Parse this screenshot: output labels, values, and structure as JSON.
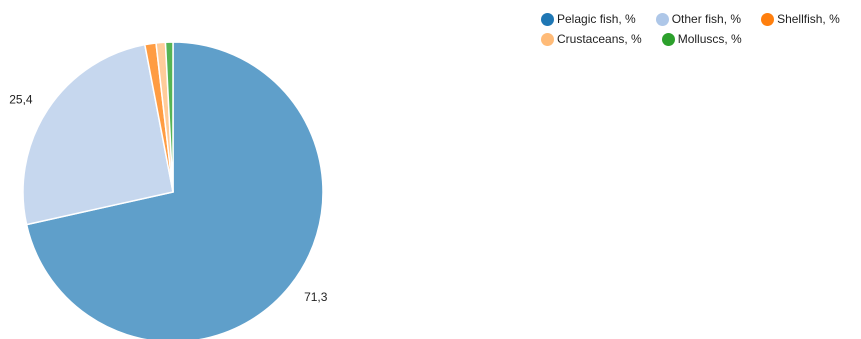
{
  "chart_data": {
    "type": "pie",
    "title": "",
    "series": [
      {
        "name": "Pelagic fish, %",
        "value": 71.3,
        "label": "71,3",
        "color": "#1f77b4",
        "fill": "#5f9fca"
      },
      {
        "name": "Other fish, %",
        "value": 25.4,
        "label": "25,4",
        "color": "#aec7e8",
        "fill": "#c6d7ee"
      },
      {
        "name": "Shellfish, %",
        "value": 1.2,
        "label": "",
        "color": "#ff7f0e",
        "fill": "#ff9c42"
      },
      {
        "name": "Crustaceans, %",
        "value": 1.0,
        "label": "",
        "color": "#ffbb78",
        "fill": "#ffcc9a"
      },
      {
        "name": "Molluscs, %",
        "value": 0.8,
        "label": "",
        "color": "#2ca02c",
        "fill": "#55b455"
      }
    ],
    "legend_position": "top-right"
  }
}
